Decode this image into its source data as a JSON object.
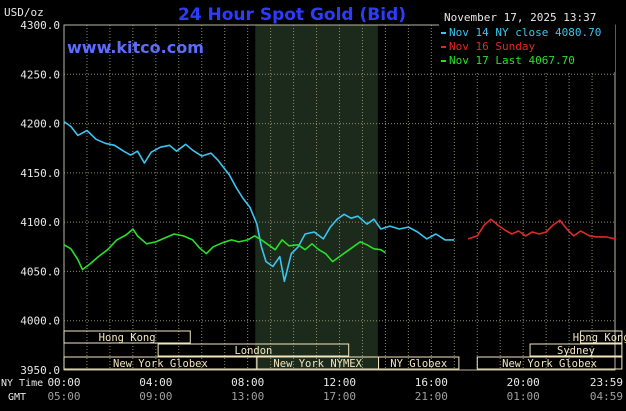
{
  "chart_data": {
    "type": "line",
    "title": "24 Hour Spot Gold (Bid)",
    "timestamp": "November 17, 2025 13:37",
    "website": "www.kitco.com",
    "ylabel": "USD/oz",
    "ylim": [
      3950,
      4300
    ],
    "yticks": [
      "4300.0",
      "4250.0",
      "4200.0",
      "4150.0",
      "4100.0",
      "4050.0",
      "4000.0",
      "3950.0"
    ],
    "ytick_values": [
      4300,
      4250,
      4200,
      4150,
      4100,
      4050,
      4000,
      3950
    ],
    "xlim": [
      0,
      24
    ],
    "x_row_label_ny": "NY Time",
    "x_row_label_gmt": "GMT",
    "xticks_ny": [
      "00:00",
      "04:00",
      "08:00",
      "12:00",
      "16:00",
      "20:00",
      "23:59"
    ],
    "xticks_gmt": [
      "05:00",
      "09:00",
      "13:00",
      "17:00",
      "21:00",
      "01:00",
      "04:59"
    ],
    "xtick_values": [
      0,
      4,
      8,
      12,
      16,
      20,
      24
    ],
    "shaded_range": [
      8.33,
      13.67
    ],
    "grid": true,
    "legend_position": "top-right",
    "colors": {
      "background": "#000000",
      "grid": "#8c8c6c",
      "shade": "#1c2a1c",
      "title": "#2c3cff",
      "website": "#5c6cff",
      "text": "#e8e8e8",
      "session_box": "#f2e6c0"
    },
    "series": [
      {
        "name": "Nov 14 NY close 4080.70",
        "color": "#3cc4f0",
        "points": [
          [
            0,
            4202
          ],
          [
            0.3,
            4197
          ],
          [
            0.6,
            4188
          ],
          [
            1,
            4193
          ],
          [
            1.4,
            4184
          ],
          [
            1.8,
            4180
          ],
          [
            2.2,
            4178
          ],
          [
            2.6,
            4172
          ],
          [
            2.9,
            4168
          ],
          [
            3.2,
            4172
          ],
          [
            3.5,
            4160
          ],
          [
            3.8,
            4171
          ],
          [
            4.2,
            4176
          ],
          [
            4.6,
            4178
          ],
          [
            4.9,
            4172
          ],
          [
            5.3,
            4179
          ],
          [
            5.6,
            4173
          ],
          [
            6,
            4167
          ],
          [
            6.4,
            4170
          ],
          [
            6.7,
            4163
          ],
          [
            6.9,
            4157
          ],
          [
            7.2,
            4148
          ],
          [
            7.5,
            4135
          ],
          [
            7.8,
            4124
          ],
          [
            8.1,
            4115
          ],
          [
            8.4,
            4098
          ],
          [
            8.6,
            4075
          ],
          [
            8.8,
            4060
          ],
          [
            9.1,
            4055
          ],
          [
            9.4,
            4065
          ],
          [
            9.6,
            4040
          ],
          [
            9.9,
            4068
          ],
          [
            10.2,
            4075
          ],
          [
            10.5,
            4088
          ],
          [
            10.9,
            4090
          ],
          [
            11.3,
            4083
          ],
          [
            11.6,
            4095
          ],
          [
            11.9,
            4103
          ],
          [
            12.2,
            4108
          ],
          [
            12.5,
            4104
          ],
          [
            12.8,
            4106
          ],
          [
            13.2,
            4098
          ],
          [
            13.5,
            4103
          ],
          [
            13.8,
            4093
          ],
          [
            14.2,
            4096
          ],
          [
            14.6,
            4093
          ],
          [
            15,
            4095
          ],
          [
            15.4,
            4090
          ],
          [
            15.8,
            4083
          ],
          [
            16.2,
            4088
          ],
          [
            16.6,
            4082
          ],
          [
            17,
            4082
          ]
        ]
      },
      {
        "name": "Nov 16 Sunday",
        "color": "#e02828",
        "points": [
          [
            17.6,
            4083
          ],
          [
            18,
            4086
          ],
          [
            18.3,
            4097
          ],
          [
            18.6,
            4103
          ],
          [
            18.9,
            4097
          ],
          [
            19.2,
            4092
          ],
          [
            19.5,
            4088
          ],
          [
            19.8,
            4091
          ],
          [
            20.1,
            4086
          ],
          [
            20.4,
            4090
          ],
          [
            20.7,
            4088
          ],
          [
            21,
            4090
          ],
          [
            21.3,
            4097
          ],
          [
            21.6,
            4102
          ],
          [
            21.9,
            4093
          ],
          [
            22.2,
            4086
          ],
          [
            22.5,
            4091
          ],
          [
            22.9,
            4086
          ],
          [
            23.2,
            4085
          ],
          [
            23.6,
            4085
          ],
          [
            24,
            4083
          ]
        ]
      },
      {
        "name": "Nov 17 Last 4067.70",
        "color": "#28e028",
        "points": [
          [
            0,
            4077
          ],
          [
            0.3,
            4073
          ],
          [
            0.6,
            4062
          ],
          [
            0.8,
            4052
          ],
          [
            1.1,
            4057
          ],
          [
            1.5,
            4065
          ],
          [
            1.9,
            4072
          ],
          [
            2.3,
            4082
          ],
          [
            2.7,
            4087
          ],
          [
            3,
            4093
          ],
          [
            3.2,
            4086
          ],
          [
            3.6,
            4078
          ],
          [
            4,
            4080
          ],
          [
            4.4,
            4084
          ],
          [
            4.8,
            4088
          ],
          [
            5.2,
            4086
          ],
          [
            5.6,
            4082
          ],
          [
            5.9,
            4074
          ],
          [
            6.2,
            4068
          ],
          [
            6.5,
            4075
          ],
          [
            6.9,
            4079
          ],
          [
            7.3,
            4082
          ],
          [
            7.6,
            4080
          ],
          [
            8,
            4082
          ],
          [
            8.3,
            4086
          ],
          [
            8.6,
            4082
          ],
          [
            8.9,
            4077
          ],
          [
            9.2,
            4072
          ],
          [
            9.5,
            4082
          ],
          [
            9.8,
            4076
          ],
          [
            10.2,
            4077
          ],
          [
            10.5,
            4072
          ],
          [
            10.8,
            4078
          ],
          [
            11.1,
            4072
          ],
          [
            11.4,
            4068
          ],
          [
            11.7,
            4060
          ],
          [
            12,
            4065
          ],
          [
            12.3,
            4070
          ],
          [
            12.6,
            4075
          ],
          [
            12.9,
            4080
          ],
          [
            13.2,
            4077
          ],
          [
            13.5,
            4073
          ],
          [
            13.8,
            4072
          ],
          [
            14,
            4069
          ]
        ]
      }
    ],
    "sessions": {
      "row1": [
        {
          "label": "Hong Kong",
          "start": -0.1,
          "end": 5.5
        },
        {
          "label": "Hong Kong",
          "start": 22.5,
          "end": 24.3
        }
      ],
      "row2": [
        {
          "label": "London",
          "start": 4.1,
          "end": 12.4
        },
        {
          "label": "Sydney",
          "start": 20.3,
          "end": 24.3
        }
      ],
      "row3": [
        {
          "label": "New York Globex",
          "start": -0.1,
          "end": 8.4
        },
        {
          "label": "New York NYMEX",
          "start": 8.4,
          "end": 13.7
        },
        {
          "label": "NY Globex",
          "start": 13.7,
          "end": 17.2
        },
        {
          "label": "New York Globex",
          "start": 18.0,
          "end": 24.3
        }
      ]
    }
  }
}
